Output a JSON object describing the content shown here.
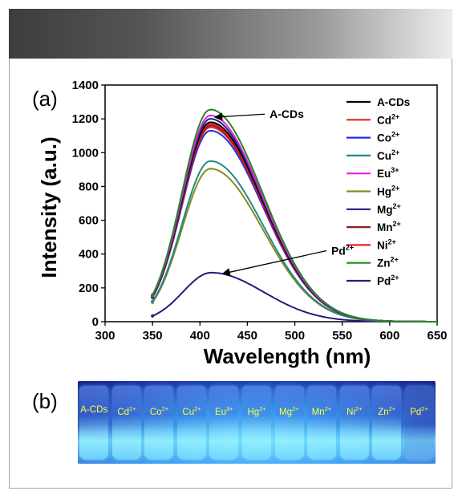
{
  "panel_a_label": "(a)",
  "panel_b_label": "(b)",
  "chart_data": {
    "type": "line",
    "xlabel": "Wavelength (nm)",
    "ylabel": "Intensity (a.u.)",
    "xlim": [
      300,
      650
    ],
    "ylim": [
      0,
      1400
    ],
    "xticks": [
      300,
      350,
      400,
      450,
      500,
      550,
      600,
      650
    ],
    "yticks": [
      0,
      200,
      400,
      600,
      800,
      1000,
      1200,
      1400
    ],
    "x_start": 350,
    "legend_position": "top-right",
    "annotations": [
      {
        "text": "A-CDs",
        "points_to": [
          412,
          1210
        ],
        "label_at": [
          470,
          1228
        ]
      },
      {
        "text": "Pd",
        "sup": "2+",
        "points_to": [
          420,
          285
        ],
        "label_at": [
          535,
          420
        ]
      }
    ],
    "series": [
      {
        "name": "A-CDs",
        "sup": "",
        "color": "#000000",
        "peak_x": 411,
        "peak_y": 1180
      },
      {
        "name": "Cd",
        "sup": "2+",
        "color": "#e8231f",
        "peak_x": 411,
        "peak_y": 1170
      },
      {
        "name": "Co",
        "sup": "2+",
        "color": "#1f2fe8",
        "peak_x": 411,
        "peak_y": 1130
      },
      {
        "name": "Cu",
        "sup": "2+",
        "color": "#1f8a8a",
        "peak_x": 411,
        "peak_y": 950
      },
      {
        "name": "Eu",
        "sup": "3+",
        "color": "#e81fe0",
        "peak_x": 411,
        "peak_y": 1220
      },
      {
        "name": "Hg",
        "sup": "2+",
        "color": "#8a8a1f",
        "peak_x": 411,
        "peak_y": 905
      },
      {
        "name": "Mg",
        "sup": "2+",
        "color": "#1f1f8a",
        "peak_x": 411,
        "peak_y": 1200
      },
      {
        "name": "Mn",
        "sup": "2+",
        "color": "#8a1f1f",
        "peak_x": 411,
        "peak_y": 1160
      },
      {
        "name": "Ni",
        "sup": "2+",
        "color": "#f0202a",
        "peak_x": 411,
        "peak_y": 1150
      },
      {
        "name": "Zn",
        "sup": "2+",
        "color": "#1f8a1f",
        "peak_x": 411,
        "peak_y": 1255
      },
      {
        "name": "Pd",
        "sup": "2+",
        "color": "#1f1f7a",
        "peak_x": 412,
        "peak_y": 290
      }
    ]
  },
  "photo_labels": [
    {
      "name": "A-CDs",
      "sup": ""
    },
    {
      "name": "Cd",
      "sup": "2+"
    },
    {
      "name": "Co",
      "sup": "2+"
    },
    {
      "name": "Cu",
      "sup": "2+"
    },
    {
      "name": "Eu",
      "sup": "3+"
    },
    {
      "name": "Hg",
      "sup": "2+"
    },
    {
      "name": "Mg",
      "sup": "2+"
    },
    {
      "name": "Mn",
      "sup": "2+"
    },
    {
      "name": "Ni",
      "sup": "2+"
    },
    {
      "name": "Zn",
      "sup": "2+"
    },
    {
      "name": "Pd",
      "sup": "2+"
    }
  ]
}
